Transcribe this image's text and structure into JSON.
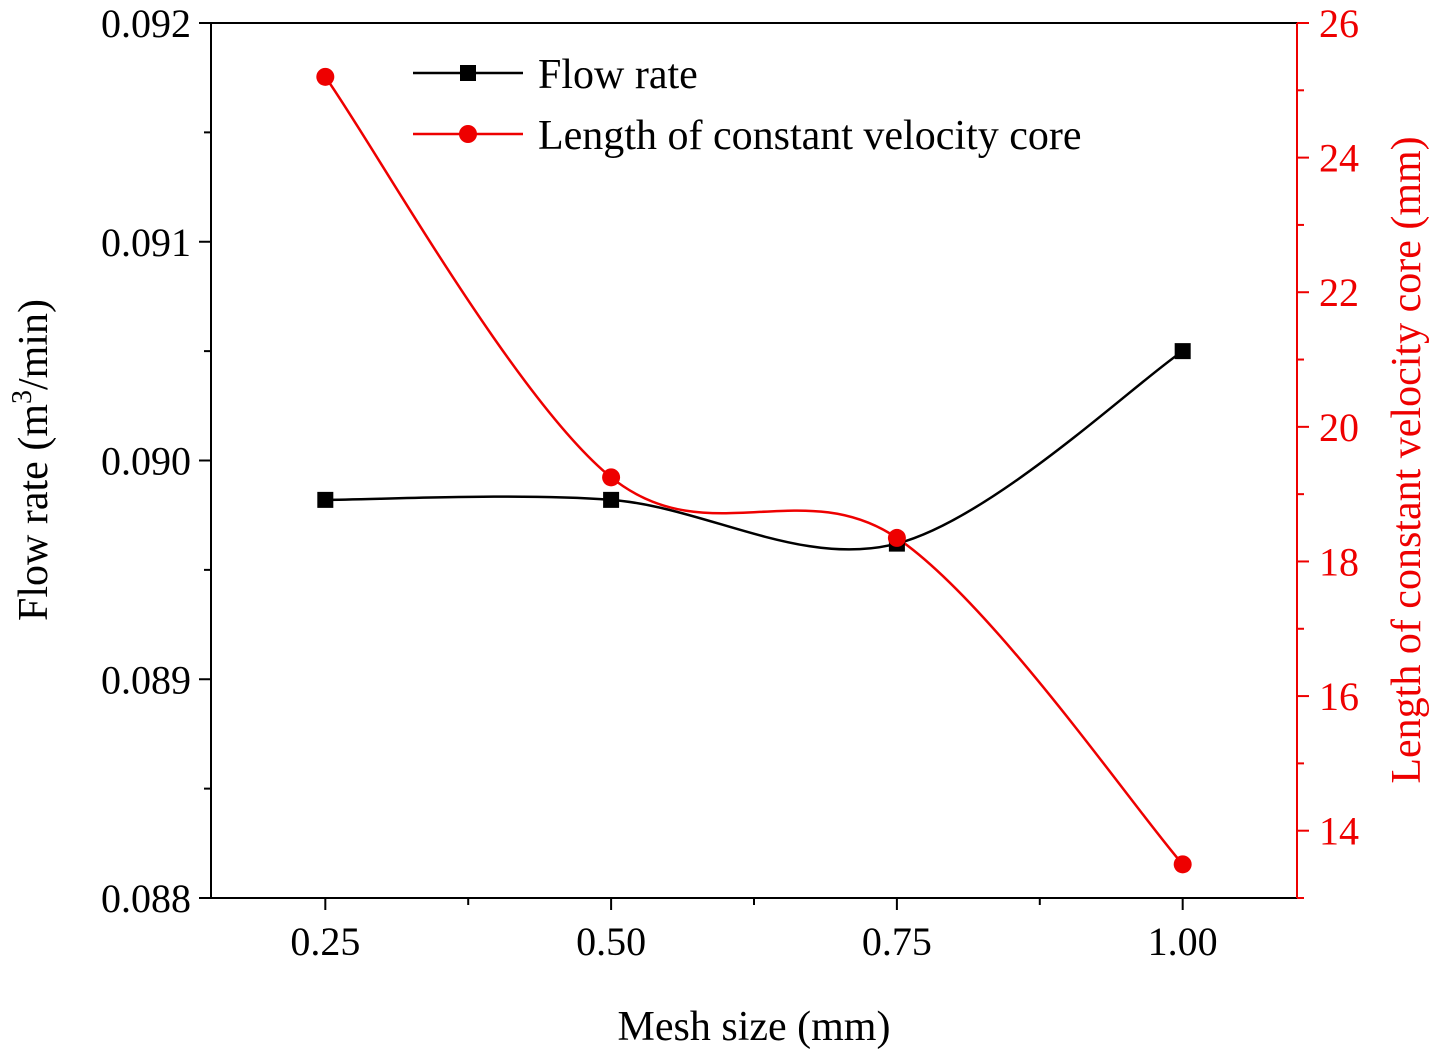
{
  "chart_data": {
    "type": "line",
    "xlabel": "Mesh size (mm)",
    "ylabel": "Flow rate (m",
    "ylabel_sup": "3",
    "ylabel_tail": "/min)",
    "y2label": "Length of constant velocity core (mm)",
    "x": [
      0.25,
      0.5,
      0.75,
      1.0
    ],
    "x_tick_labels": [
      "0.25",
      "0.50",
      "0.75",
      "1.00"
    ],
    "xlim": [
      0.15,
      1.1
    ],
    "ylim": [
      0.088,
      0.092
    ],
    "y_tick_labels": [
      "0.088",
      "0.089",
      "0.090",
      "0.091",
      "0.092"
    ],
    "y2lim": [
      13,
      26
    ],
    "y2_tick_labels": [
      "14",
      "16",
      "18",
      "20",
      "22",
      "24",
      "26"
    ],
    "series": [
      {
        "name": "Flow rate",
        "axis": "left",
        "color": "#000000",
        "marker": "square",
        "values": [
          0.08982,
          0.08982,
          0.08962,
          0.0905
        ]
      },
      {
        "name": "Length of constant velocity core",
        "axis": "right",
        "color": "#ee0000",
        "marker": "circle",
        "values": [
          25.2,
          19.25,
          18.35,
          13.5
        ]
      }
    ],
    "legend_position": "top-center"
  }
}
